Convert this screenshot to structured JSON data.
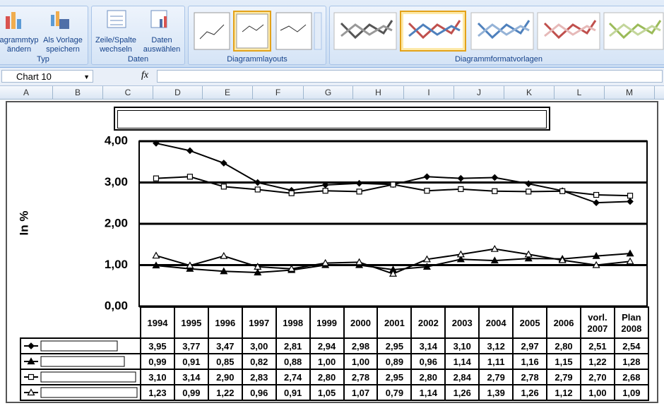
{
  "ribbon": {
    "groups": [
      {
        "label": "Typ",
        "buttons": [
          "agrammtyp ändern",
          "Als Vorlage speichern"
        ]
      },
      {
        "label": "Daten",
        "buttons": [
          "Zeile/Spalte wechseln",
          "Daten auswählen"
        ]
      },
      {
        "label": "Diagrammlayouts",
        "buttons": []
      },
      {
        "label": "Diagrammformatvorlagen",
        "buttons": []
      }
    ]
  },
  "name_box": "Chart 10",
  "formula_label": "fx",
  "columns": [
    "A",
    "B",
    "C",
    "D",
    "E",
    "F",
    "G",
    "H",
    "I",
    "J",
    "K",
    "L",
    "M"
  ],
  "chart_data": {
    "type": "line",
    "y_label": "In %",
    "categories": [
      "1994",
      "1995",
      "1996",
      "1997",
      "1998",
      "1999",
      "2000",
      "2001",
      "2002",
      "2003",
      "2004",
      "2005",
      "2006",
      "vorl. 2007",
      "Plan 2008"
    ],
    "ylim": [
      0,
      4
    ],
    "yticks": [
      {
        "value": 0,
        "label": "0,00"
      },
      {
        "value": 1,
        "label": "1,00"
      },
      {
        "value": 2,
        "label": "2,00"
      },
      {
        "value": 3,
        "label": "3,00"
      },
      {
        "value": 4,
        "label": "4,00"
      }
    ],
    "grid": true,
    "series": [
      {
        "color": "#000000",
        "marker": "diamond",
        "filled": true,
        "values": [
          3.95,
          3.77,
          3.47,
          3.0,
          2.81,
          2.94,
          2.98,
          2.95,
          3.14,
          3.1,
          3.12,
          2.97,
          2.8,
          2.51,
          2.54
        ],
        "value_labels": [
          "3,95",
          "3,77",
          "3,47",
          "3,00",
          "2,81",
          "2,94",
          "2,98",
          "2,95",
          "3,14",
          "3,10",
          "3,12",
          "2,97",
          "2,80",
          "2,51",
          "2,54"
        ]
      },
      {
        "color": "#000000",
        "marker": "triangle",
        "filled": true,
        "values": [
          0.99,
          0.91,
          0.85,
          0.82,
          0.88,
          1.0,
          1.0,
          0.89,
          0.96,
          1.14,
          1.11,
          1.16,
          1.15,
          1.22,
          1.28
        ],
        "value_labels": [
          "0,99",
          "0,91",
          "0,85",
          "0,82",
          "0,88",
          "1,00",
          "1,00",
          "0,89",
          "0,96",
          "1,14",
          "1,11",
          "1,16",
          "1,15",
          "1,22",
          "1,28"
        ]
      },
      {
        "color": "#000000",
        "marker": "square",
        "filled": false,
        "values": [
          3.1,
          3.14,
          2.9,
          2.83,
          2.74,
          2.8,
          2.78,
          2.95,
          2.8,
          2.84,
          2.79,
          2.78,
          2.79,
          2.7,
          2.68
        ],
        "value_labels": [
          "3,10",
          "3,14",
          "2,90",
          "2,83",
          "2,74",
          "2,80",
          "2,78",
          "2,95",
          "2,80",
          "2,84",
          "2,79",
          "2,78",
          "2,79",
          "2,70",
          "2,68"
        ]
      },
      {
        "color": "#000000",
        "marker": "triangle",
        "filled": false,
        "values": [
          1.23,
          0.99,
          1.22,
          0.96,
          0.91,
          1.05,
          1.07,
          0.79,
          1.14,
          1.26,
          1.39,
          1.26,
          1.12,
          1.0,
          1.09
        ],
        "value_labels": [
          "1,23",
          "0,99",
          "1,22",
          "0,96",
          "0,91",
          "1,05",
          "1,07",
          "0,79",
          "1,14",
          "1,26",
          "1,39",
          "1,26",
          "1,12",
          "1,00",
          "1,09"
        ]
      }
    ]
  }
}
